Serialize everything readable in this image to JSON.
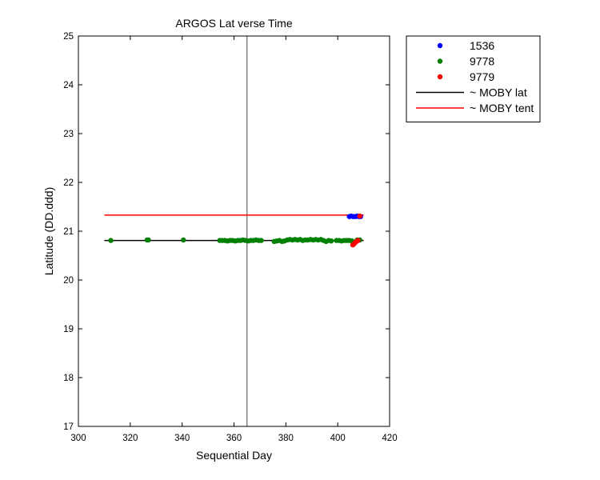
{
  "chart_data": {
    "type": "scatter",
    "title": "ARGOS Lat verse Time",
    "xlabel": "Sequential Day",
    "ylabel": "Latitude (DD.ddd)",
    "xlim": [
      300,
      420
    ],
    "ylim": [
      17,
      25
    ],
    "xticks": [
      300,
      320,
      340,
      360,
      380,
      400,
      420
    ],
    "yticks": [
      17,
      18,
      19,
      20,
      21,
      22,
      23,
      24,
      25
    ],
    "grid": false,
    "legend_position": "outside-top-right",
    "vertical_marker_x": 365,
    "series": [
      {
        "name": "1536",
        "kind": "points",
        "color": "#0000ff",
        "points": [
          [
            404.5,
            21.3
          ],
          [
            405.2,
            21.31
          ],
          [
            406.0,
            21.3
          ],
          [
            406.8,
            21.3
          ],
          [
            407.5,
            21.31
          ],
          [
            408.2,
            21.3
          ],
          [
            408.8,
            21.3
          ]
        ]
      },
      {
        "name": "9778",
        "kind": "points",
        "color": "#008000",
        "points": [
          [
            312.5,
            20.81
          ],
          [
            326.5,
            20.82
          ],
          [
            327.0,
            20.82
          ],
          [
            340.5,
            20.82
          ],
          [
            354.5,
            20.81
          ],
          [
            355.5,
            20.81
          ],
          [
            356.5,
            20.81
          ],
          [
            357.5,
            20.8
          ],
          [
            358.5,
            20.81
          ],
          [
            359.5,
            20.81
          ],
          [
            360.5,
            20.8
          ],
          [
            361.5,
            20.81
          ],
          [
            362.5,
            20.81
          ],
          [
            363.5,
            20.82
          ],
          [
            364.5,
            20.81
          ],
          [
            365.5,
            20.8
          ],
          [
            366.5,
            20.81
          ],
          [
            367.5,
            20.81
          ],
          [
            368.5,
            20.82
          ],
          [
            369.5,
            20.81
          ],
          [
            370.5,
            20.81
          ],
          [
            375.5,
            20.79
          ],
          [
            376.5,
            20.8
          ],
          [
            377.5,
            20.81
          ],
          [
            378.5,
            20.79
          ],
          [
            379.5,
            20.8
          ],
          [
            380.5,
            20.82
          ],
          [
            381.5,
            20.83
          ],
          [
            382.5,
            20.82
          ],
          [
            383.5,
            20.83
          ],
          [
            384.5,
            20.82
          ],
          [
            385.5,
            20.83
          ],
          [
            386.5,
            20.81
          ],
          [
            387.5,
            20.82
          ],
          [
            388.5,
            20.82
          ],
          [
            389.5,
            20.83
          ],
          [
            390.5,
            20.82
          ],
          [
            391.5,
            20.83
          ],
          [
            392.5,
            20.82
          ],
          [
            393.5,
            20.83
          ],
          [
            394.5,
            20.81
          ],
          [
            395.5,
            20.79
          ],
          [
            396.5,
            20.81
          ],
          [
            397.5,
            20.8
          ],
          [
            399.5,
            20.81
          ],
          [
            400.5,
            20.81
          ],
          [
            401.5,
            20.8
          ],
          [
            402.5,
            20.81
          ],
          [
            403.5,
            20.81
          ],
          [
            404.5,
            20.81
          ],
          [
            405.5,
            20.8
          ],
          [
            407.5,
            20.82
          ],
          [
            408.5,
            20.82
          ]
        ]
      },
      {
        "name": "9779",
        "kind": "points",
        "color": "#ff0000",
        "points": [
          [
            405.8,
            20.72
          ],
          [
            406.3,
            20.74
          ],
          [
            406.8,
            20.77
          ],
          [
            407.2,
            20.79
          ],
          [
            407.8,
            20.81
          ],
          [
            408.5,
            21.31
          ]
        ]
      },
      {
        "name": "~ MOBY lat",
        "kind": "line",
        "color": "#000000",
        "x": [
          310,
          410
        ],
        "y": [
          20.81,
          20.81
        ]
      },
      {
        "name": "~ MOBY tent",
        "kind": "line",
        "color": "#ff0000",
        "x": [
          310,
          410
        ],
        "y": [
          21.33,
          21.33
        ]
      }
    ]
  }
}
